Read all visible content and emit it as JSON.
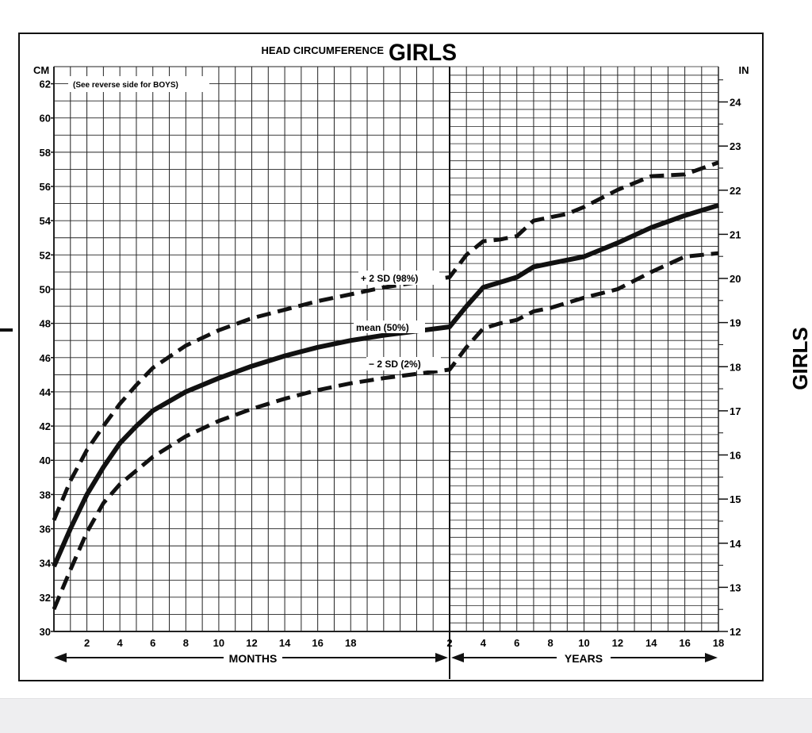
{
  "header": {
    "title_small": "HEAD CIRCUMFERENCE",
    "title_big": "GIRLS"
  },
  "note": "(See reverse side for BOYS)",
  "side_label": "GIRLS",
  "axes": {
    "left_unit": "CM",
    "right_unit": "IN",
    "months_word": "MONTHS",
    "years_word": "YEARS",
    "months_ticks": [
      "2",
      "4",
      "6",
      "8",
      "10",
      "12",
      "14",
      "16",
      "18"
    ],
    "years_ticks": [
      "2",
      "4",
      "6",
      "8",
      "10",
      "12",
      "14",
      "16",
      "18"
    ],
    "cm_ticks": [
      "30",
      "32",
      "34",
      "36",
      "38",
      "40",
      "42",
      "44",
      "46",
      "48",
      "50",
      "52",
      "54",
      "56",
      "58",
      "60",
      "62"
    ],
    "in_ticks": [
      "12",
      "13",
      "14",
      "15",
      "16",
      "17",
      "18",
      "19",
      "20",
      "21",
      "22",
      "23",
      "24"
    ]
  },
  "colors": {
    "ink": "#111111",
    "background": "#ffffff",
    "footer": "#eeeef0"
  },
  "chart_data": {
    "type": "line",
    "title": "HEAD CIRCUMFERENCE GIRLS",
    "xlabel": "MONTHS / YEARS",
    "ylabel": "CM",
    "y2label": "IN",
    "x_segments": [
      {
        "label": "MONTHS",
        "range": [
          0,
          24
        ],
        "unit": "months"
      },
      {
        "label": "YEARS",
        "range": [
          2,
          18
        ],
        "unit": "years"
      }
    ],
    "ylim": [
      30,
      63
    ],
    "y2lim": [
      12,
      24.8
    ],
    "grid": true,
    "series": [
      {
        "name": "+ 2 SD (98%)",
        "style": "dashed",
        "months": {
          "x": [
            0,
            1,
            2,
            3,
            4,
            5,
            6,
            8,
            10,
            12,
            14,
            16,
            18,
            20,
            24
          ],
          "y": [
            36.5,
            38.8,
            40.6,
            42.0,
            43.3,
            44.4,
            45.4,
            46.7,
            47.6,
            48.3,
            48.8,
            49.3,
            49.7,
            50.1,
            50.7
          ]
        },
        "years": {
          "x": [
            2,
            3,
            4,
            5,
            6,
            7,
            8,
            9,
            10,
            12,
            14,
            16,
            18
          ],
          "y": [
            50.7,
            52.0,
            52.8,
            52.9,
            53.1,
            54.0,
            54.2,
            54.4,
            54.8,
            55.8,
            56.6,
            56.7,
            57.4
          ]
        }
      },
      {
        "name": "mean (50%)",
        "style": "solid",
        "months": {
          "x": [
            0,
            1,
            2,
            3,
            4,
            5,
            6,
            8,
            10,
            12,
            14,
            16,
            18,
            20,
            24
          ],
          "y": [
            33.8,
            36.0,
            38.0,
            39.6,
            41.0,
            42.0,
            42.9,
            44.0,
            44.8,
            45.5,
            46.1,
            46.6,
            47.0,
            47.3,
            47.8
          ]
        },
        "years": {
          "x": [
            2,
            3,
            4,
            5,
            6,
            7,
            8,
            9,
            10,
            12,
            14,
            16,
            18
          ],
          "y": [
            47.8,
            49.0,
            50.1,
            50.4,
            50.7,
            51.3,
            51.5,
            51.7,
            51.9,
            52.7,
            53.6,
            54.3,
            54.9
          ]
        }
      },
      {
        "name": "− 2 SD (2%)",
        "style": "dashed",
        "months": {
          "x": [
            0,
            1,
            2,
            3,
            4,
            5,
            6,
            8,
            10,
            12,
            14,
            16,
            18,
            20,
            24
          ],
          "y": [
            31.3,
            33.6,
            35.8,
            37.5,
            38.6,
            39.4,
            40.2,
            41.4,
            42.3,
            43.0,
            43.6,
            44.1,
            44.5,
            44.8,
            45.3
          ]
        },
        "years": {
          "x": [
            2,
            3,
            4,
            5,
            6,
            7,
            8,
            9,
            10,
            12,
            14,
            16,
            18
          ],
          "y": [
            45.3,
            46.6,
            47.7,
            48.0,
            48.2,
            48.7,
            48.9,
            49.2,
            49.5,
            50.0,
            51.0,
            51.9,
            52.1
          ]
        }
      }
    ],
    "annotations": [
      "+ 2 SD (98%)",
      "mean (50%)",
      "− 2 SD (2%)",
      "(See reverse side for BOYS)"
    ]
  }
}
